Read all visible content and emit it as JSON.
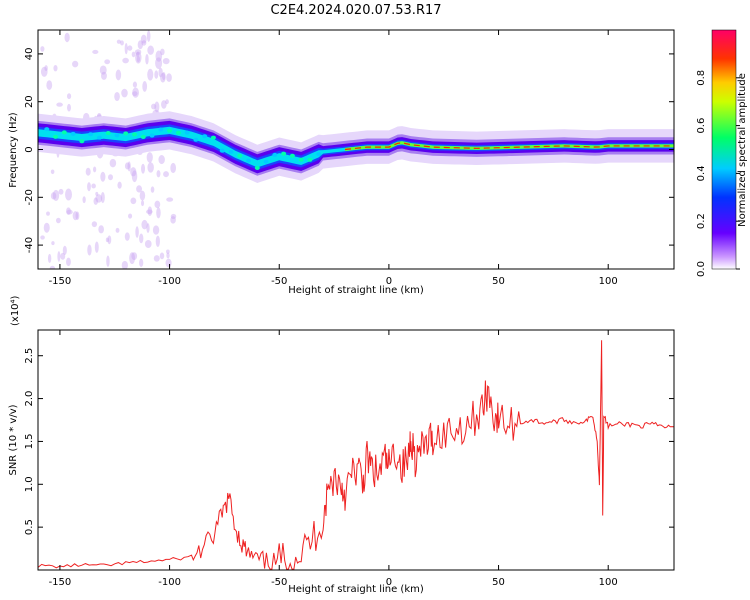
{
  "figure": {
    "title": "C2E4.2024.020.07.53.R17"
  },
  "chart_data": [
    {
      "type": "heatmap",
      "xlabel": "Height of straight line (km)",
      "ylabel": "Frequency (Hz)",
      "xlim": [
        -160,
        130
      ],
      "ylim": [
        -50,
        50
      ],
      "xticks": [
        -150,
        -100,
        -50,
        0,
        50,
        100
      ],
      "yticks": [
        -40,
        -20,
        0,
        20,
        40
      ],
      "grid": false,
      "colorbar": {
        "label": "Normalized spectral amplitude",
        "range": [
          0.0,
          1.0
        ],
        "ticks": [
          0.0,
          0.2,
          0.4,
          0.6,
          0.8
        ],
        "colors": [
          "#ffffff",
          "#6600ff",
          "#00ccff",
          "#00ff66",
          "#ffff00",
          "#ff8800",
          "#ff0033"
        ]
      },
      "ridge_centerline_hz": {
        "x": [
          -160,
          -150,
          -140,
          -130,
          -120,
          -110,
          -100,
          -90,
          -80,
          -70,
          -60,
          -50,
          -45,
          -40,
          -35,
          -30,
          -20,
          -10,
          0,
          5,
          10,
          20,
          40,
          60,
          80,
          95,
          100,
          110,
          130
        ],
        "y": [
          7,
          6,
          5,
          6,
          5,
          7,
          8,
          6,
          3,
          -2,
          -6,
          -3,
          -4,
          -5,
          -3,
          -1,
          0,
          1,
          1,
          3,
          2,
          1,
          0.5,
          1,
          1.5,
          1,
          1.5,
          1.5,
          1.5
        ]
      }
    },
    {
      "type": "line",
      "xlabel": "Height of straight line (km)",
      "ylabel": "SNR (10 * v/v)",
      "y_multiplier": "(x10⁴)",
      "xlim": [
        -160,
        130
      ],
      "ylim": [
        0,
        2.8
      ],
      "xticks": [
        -150,
        -100,
        -50,
        0,
        50,
        100
      ],
      "yticks": [
        0.5,
        1.0,
        1.5,
        2.0,
        2.5
      ],
      "grid": false,
      "series": [
        {
          "color": "#ee2222",
          "x": [
            -160,
            -150,
            -140,
            -130,
            -120,
            -110,
            -100,
            -90,
            -85,
            -80,
            -76,
            -73,
            -70,
            -67,
            -64,
            -60,
            -55,
            -50,
            -45,
            -40,
            -35,
            -30,
            -28,
            -25,
            -22,
            -20,
            -17,
            -14,
            -12,
            -10,
            -8,
            -5,
            -2,
            0,
            3,
            6,
            9,
            10,
            12,
            15,
            18,
            20,
            25,
            30,
            35,
            40,
            43,
            45,
            48,
            50,
            55,
            60,
            65,
            70,
            75,
            80,
            85,
            90,
            93,
            95,
            96,
            97,
            97.5,
            98,
            100,
            105,
            110,
            115,
            120,
            125,
            130
          ],
          "y": [
            0.05,
            0.04,
            0.06,
            0.05,
            0.08,
            0.1,
            0.12,
            0.15,
            0.25,
            0.4,
            0.65,
            0.85,
            0.5,
            0.3,
            0.18,
            0.12,
            0.08,
            0.1,
            0.15,
            0.2,
            0.35,
            0.6,
            0.9,
            1.1,
            1.0,
            0.9,
            1.1,
            1.2,
            1.0,
            1.3,
            1.2,
            1.1,
            1.3,
            1.2,
            1.4,
            1.2,
            1.3,
            1.6,
            1.3,
            1.4,
            1.5,
            1.55,
            1.6,
            1.65,
            1.7,
            1.8,
            1.9,
            2.1,
            1.8,
            1.75,
            1.7,
            1.72,
            1.75,
            1.72,
            1.73,
            1.75,
            1.72,
            1.74,
            1.8,
            1.5,
            1.0,
            2.7,
            0.65,
            1.8,
            1.68,
            1.7,
            1.7,
            1.68,
            1.7,
            1.67,
            1.67
          ]
        }
      ]
    }
  ]
}
